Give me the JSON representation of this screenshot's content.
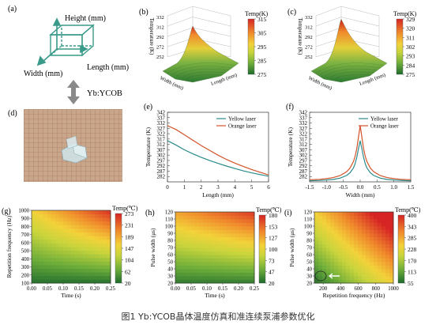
{
  "caption": "图1 Yb:YCOB晶体温度仿真和准连续泵浦参数优化",
  "panel_a": {
    "label": "(a)",
    "height_label": "Height (mm)",
    "length_label": "Length (mm)",
    "width_label": "Width (mm)",
    "crystal_label": "Yb:YCOB"
  },
  "panel_d": {
    "label": "(d)"
  },
  "chart_data": [
    {
      "id": "b",
      "label": "(b)",
      "type": "surface3d",
      "zlabel": "Temperature (K)",
      "xlabel": "Length (mm)",
      "ylabel": "Width (mm)",
      "z_ticks": [
        "252",
        "272",
        "292",
        "312",
        "332"
      ],
      "colorbar": {
        "title": "Temp(K)",
        "ticks": [
          "315",
          "305",
          "295",
          "285",
          "275"
        ],
        "min": 275,
        "max": 315
      },
      "peak": 315
    },
    {
      "id": "c",
      "label": "(c)",
      "type": "surface3d",
      "zlabel": "Temperature (K)",
      "xlabel": "Length (mm)",
      "ylabel": "Width (mm)",
      "z_ticks": [
        "252",
        "272",
        "292",
        "312",
        "332"
      ],
      "colorbar": {
        "title": "Temp(K)",
        "ticks": [
          "329",
          "320",
          "311",
          "302",
          "293",
          "284",
          "275"
        ],
        "min": 275,
        "max": 329
      },
      "peak": 329
    },
    {
      "id": "e",
      "label": "(e)",
      "type": "line",
      "xlabel": "Length (mm)",
      "ylabel": "Temperature (K)",
      "xlim": [
        0,
        6
      ],
      "ylim": [
        277,
        342
      ],
      "x_ticks": [
        0,
        1,
        2,
        3,
        4,
        5,
        6
      ],
      "y_ticks": [
        282,
        287,
        292,
        297,
        302,
        307,
        312,
        317,
        322,
        327,
        332,
        337,
        342
      ],
      "legend": "top-right",
      "series": [
        {
          "name": "Yellow laser",
          "color": "#2a8a8a",
          "x": [
            0,
            0.5,
            1,
            1.5,
            2,
            2.5,
            3,
            3.5,
            4,
            4.5,
            5,
            5.5,
            6
          ],
          "y": [
            315.5,
            311.5,
            307,
            303.3,
            300,
            297,
            294.3,
            291.8,
            289.5,
            287.3,
            285.4,
            283.8,
            282.3
          ]
        },
        {
          "name": "Orange laser",
          "color": "#d2532a",
          "x": [
            0,
            0.5,
            1,
            1.5,
            2,
            2.5,
            3,
            3.5,
            4,
            4.5,
            5,
            5.5,
            6
          ],
          "y": [
            329.5,
            326,
            321,
            316,
            311,
            306.5,
            302,
            298,
            294.5,
            291.5,
            288.5,
            286,
            283.5
          ]
        }
      ]
    },
    {
      "id": "f",
      "label": "(f)",
      "type": "line",
      "xlabel": "Width (mm)",
      "ylabel": "Temperature (K)",
      "xlim": [
        -1.5,
        1.5
      ],
      "ylim": [
        277,
        342
      ],
      "x_ticks": [
        "-1.5",
        "-1.0",
        "-0.5",
        "0.0",
        "0.5",
        "1.0",
        "1.5"
      ],
      "y_ticks": [
        282,
        287,
        292,
        297,
        302,
        307,
        312,
        317,
        322,
        327,
        332,
        337,
        342
      ],
      "legend": "top-right",
      "series": [
        {
          "name": "Yellow laser",
          "color": "#2a8a8a",
          "x": [
            -1.5,
            -1.2,
            -1.0,
            -0.8,
            -0.6,
            -0.4,
            -0.3,
            -0.2,
            -0.15,
            -0.1,
            -0.05,
            0,
            0.05,
            0.1,
            0.15,
            0.2,
            0.3,
            0.4,
            0.6,
            0.8,
            1.0,
            1.2,
            1.5
          ],
          "y": [
            278,
            278.3,
            278.7,
            279.3,
            280.5,
            283,
            285.5,
            290,
            294,
            300,
            308,
            315.5,
            308,
            300,
            294,
            290,
            285.5,
            283,
            280.5,
            279.3,
            278.7,
            278.3,
            278
          ]
        },
        {
          "name": "Orange laser",
          "color": "#d2532a",
          "x": [
            -1.5,
            -1.2,
            -1.0,
            -0.8,
            -0.6,
            -0.4,
            -0.3,
            -0.2,
            -0.15,
            -0.1,
            -0.05,
            0,
            0.05,
            0.1,
            0.15,
            0.2,
            0.3,
            0.4,
            0.6,
            0.8,
            1.0,
            1.2,
            1.5
          ],
          "y": [
            279,
            279.4,
            280,
            281,
            282.8,
            286.5,
            290,
            296,
            301,
            308,
            319,
            329.5,
            319,
            308,
            301,
            296,
            290,
            286.5,
            282.8,
            281,
            280,
            279.4,
            279
          ]
        }
      ]
    },
    {
      "id": "g",
      "label": "(g)",
      "type": "heatmap",
      "xlabel": "Time (s)",
      "ylabel": "Repetition frequency (Hz)",
      "x_ticks": [
        "0.00",
        "0.05",
        "0.10",
        "0.15",
        "0.20",
        "0.25"
      ],
      "y_ticks": [
        "100",
        "200",
        "300",
        "400",
        "500",
        "600",
        "700",
        "800",
        "900",
        "1000"
      ],
      "colorbar": {
        "title": "Temp(℃)",
        "ticks": [
          "273",
          "231",
          "189",
          "147",
          "104",
          "62",
          "20"
        ],
        "min": 20,
        "max": 273
      }
    },
    {
      "id": "h",
      "label": "(h)",
      "type": "heatmap",
      "xlabel": "Time (s)",
      "ylabel": "Pulse width (μs)",
      "x_ticks": [
        "0.00",
        "0.05",
        "0.10",
        "0.15",
        "0.20",
        "0.25"
      ],
      "y_ticks": [
        "20",
        "30",
        "40",
        "50",
        "60",
        "70",
        "80",
        "90",
        "100",
        "110",
        "120"
      ],
      "colorbar": {
        "title": "Temp(℃)",
        "ticks": [
          "180",
          "153",
          "127",
          "100",
          "73",
          "47",
          "20"
        ],
        "min": 20,
        "max": 180
      }
    },
    {
      "id": "i",
      "label": "(i)",
      "type": "heatmap",
      "xlabel": "Repetition frequency (Hz)",
      "ylabel": "Pulse width (μs)",
      "x_ticks": [
        "200",
        "400",
        "600",
        "800",
        "1000"
      ],
      "y_ticks": [
        "20",
        "30",
        "40",
        "50",
        "60",
        "70",
        "80",
        "90",
        "100",
        "110",
        "120"
      ],
      "colorbar": {
        "title": "Temp(℃)",
        "ticks": [
          "400",
          "343",
          "285",
          "228",
          "170",
          "113",
          "55"
        ],
        "min": 55,
        "max": 400
      }
    }
  ]
}
